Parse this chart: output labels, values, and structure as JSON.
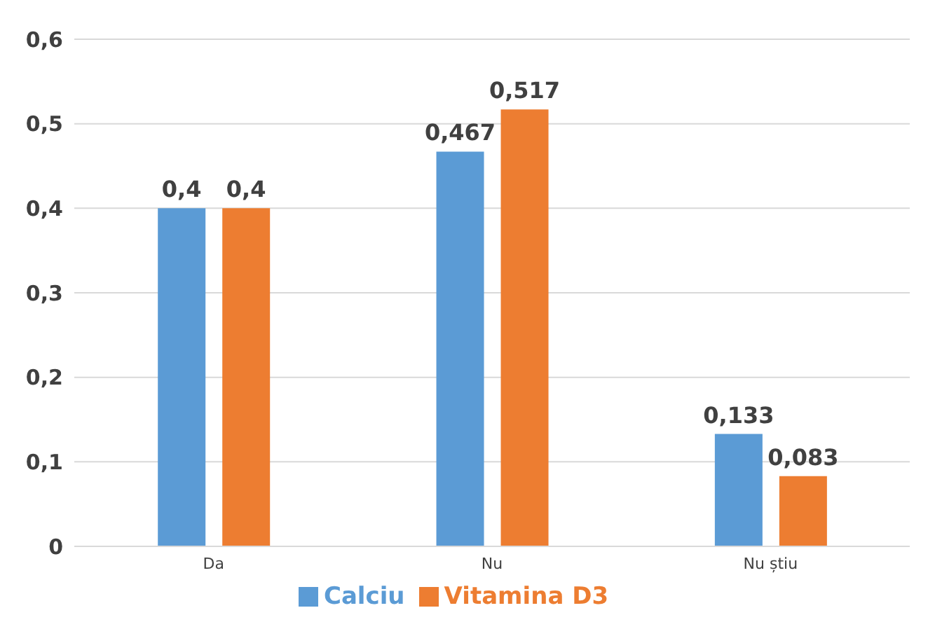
{
  "chart_data": {
    "type": "bar",
    "categories": [
      "Da",
      "Nu",
      "Nu știu"
    ],
    "series": [
      {
        "name": "Calciu",
        "color": "#5b9bd5",
        "values": [
          0.4,
          0.467,
          0.133
        ],
        "value_labels": [
          "0,4",
          "0,467",
          "0,133"
        ]
      },
      {
        "name": "Vitamina D3",
        "color": "#ed7d31",
        "values": [
          0.4,
          0.517,
          0.083
        ],
        "value_labels": [
          "0,4",
          "0,517",
          "0,083"
        ]
      }
    ],
    "ylim": [
      0,
      0.6
    ],
    "yticks": [
      {
        "value": 0,
        "label": "0"
      },
      {
        "value": 0.1,
        "label": "0,1"
      },
      {
        "value": 0.2,
        "label": "0,2"
      },
      {
        "value": 0.3,
        "label": "0,3"
      },
      {
        "value": 0.4,
        "label": "0,4"
      },
      {
        "value": 0.5,
        "label": "0,5"
      },
      {
        "value": 0.6,
        "label": "0,6"
      }
    ],
    "grid": "y",
    "legend": "bottom"
  }
}
